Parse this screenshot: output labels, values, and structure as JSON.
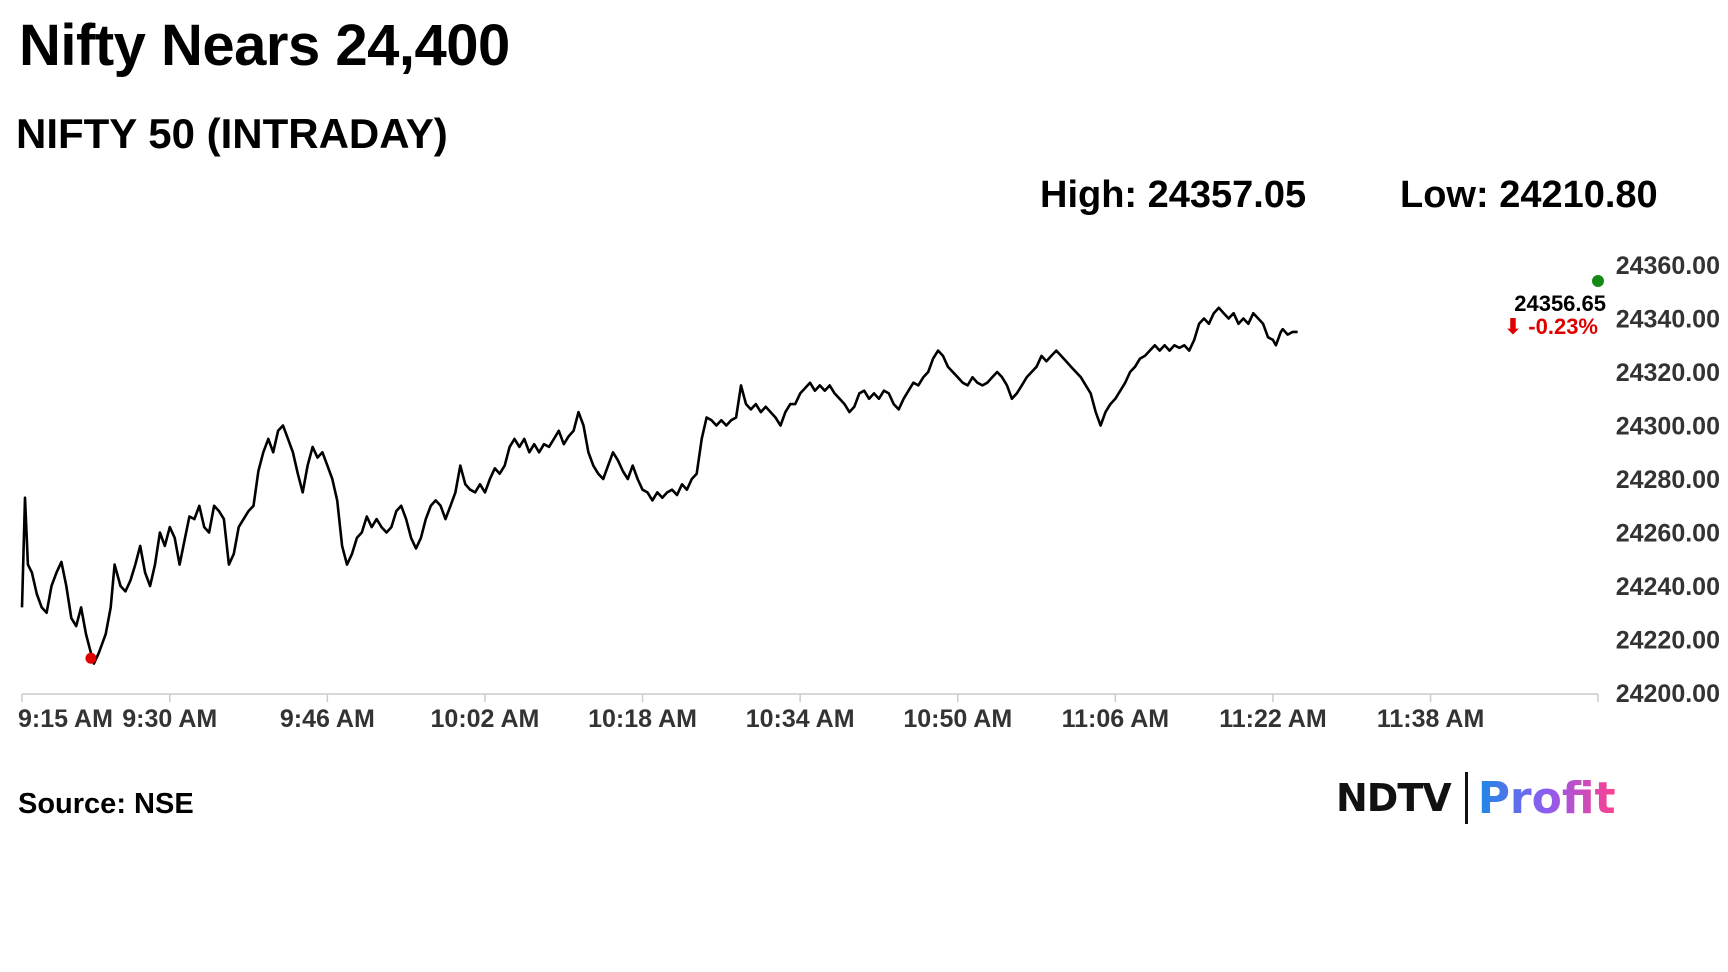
{
  "headline": "Nifty Nears 24,400",
  "chart_data": {
    "type": "line",
    "title": "NIFTY 50 (INTRADAY)",
    "stats": {
      "high": "High: 24357.05",
      "low": "Low: 24210.80"
    },
    "last_value_label": "24356.65",
    "change_label": "⬇ -0.23%",
    "ylim": [
      24200,
      24360
    ],
    "y_ticks": [
      "24360.00",
      "24340.00",
      "24320.00",
      "24300.00",
      "24280.00",
      "24260.00",
      "24240.00",
      "24220.00",
      "24200.00"
    ],
    "x_tick_labels": [
      "9:15 AM",
      "9:30 AM",
      "9:46 AM",
      "10:02 AM",
      "10:18 AM",
      "10:34 AM",
      "10:50 AM",
      "11:06 AM",
      "11:22 AM",
      "11:38 AM"
    ],
    "x_ticks_min": [
      0,
      15,
      31,
      47,
      63,
      79,
      95,
      111,
      127,
      143
    ],
    "x_max_min": 160,
    "series": [
      {
        "points": [
          [
            0,
            24232
          ],
          [
            0.3,
            24273
          ],
          [
            0.6,
            24248
          ],
          [
            1,
            24245
          ],
          [
            1.5,
            24237
          ],
          [
            2,
            24232
          ],
          [
            2.5,
            24230
          ],
          [
            3,
            24240
          ],
          [
            3.5,
            24245
          ],
          [
            4,
            24249
          ],
          [
            4.5,
            24240
          ],
          [
            5,
            24228
          ],
          [
            5.5,
            24225
          ],
          [
            6,
            24232
          ],
          [
            6.5,
            24222
          ],
          [
            7,
            24215
          ],
          [
            7.3,
            24211
          ],
          [
            7.8,
            24215
          ],
          [
            8.5,
            24222
          ],
          [
            9,
            24232
          ],
          [
            9.4,
            24248
          ],
          [
            10,
            24240
          ],
          [
            10.5,
            24238
          ],
          [
            11,
            24242
          ],
          [
            11.5,
            24248
          ],
          [
            12,
            24255
          ],
          [
            12.5,
            24245
          ],
          [
            13,
            24240
          ],
          [
            13.5,
            24248
          ],
          [
            14,
            24260
          ],
          [
            14.5,
            24255
          ],
          [
            15,
            24262
          ],
          [
            15.5,
            24258
          ],
          [
            16,
            24248
          ],
          [
            16.5,
            24257
          ],
          [
            17,
            24266
          ],
          [
            17.5,
            24265
          ],
          [
            18,
            24270
          ],
          [
            18.5,
            24262
          ],
          [
            19,
            24260
          ],
          [
            19.5,
            24270
          ],
          [
            20,
            24268
          ],
          [
            20.5,
            24265
          ],
          [
            21,
            24248
          ],
          [
            21.5,
            24252
          ],
          [
            22,
            24262
          ],
          [
            22.5,
            24265
          ],
          [
            23,
            24268
          ],
          [
            23.5,
            24270
          ],
          [
            24,
            24283
          ],
          [
            24.5,
            24290
          ],
          [
            25,
            24295
          ],
          [
            25.5,
            24290
          ],
          [
            26,
            24298
          ],
          [
            26.5,
            24300
          ],
          [
            27,
            24295
          ],
          [
            27.5,
            24290
          ],
          [
            28,
            24282
          ],
          [
            28.5,
            24275
          ],
          [
            29,
            24285
          ],
          [
            29.5,
            24292
          ],
          [
            30,
            24288
          ],
          [
            30.5,
            24290
          ],
          [
            31,
            24285
          ],
          [
            31.5,
            24280
          ],
          [
            32,
            24272
          ],
          [
            32.5,
            24255
          ],
          [
            33,
            24248
          ],
          [
            33.5,
            24252
          ],
          [
            34,
            24258
          ],
          [
            34.5,
            24260
          ],
          [
            35,
            24266
          ],
          [
            35.5,
            24262
          ],
          [
            36,
            24265
          ],
          [
            36.5,
            24262
          ],
          [
            37,
            24260
          ],
          [
            37.5,
            24262
          ],
          [
            38,
            24268
          ],
          [
            38.5,
            24270
          ],
          [
            39,
            24265
          ],
          [
            39.5,
            24258
          ],
          [
            40,
            24254
          ],
          [
            40.5,
            24258
          ],
          [
            41,
            24265
          ],
          [
            41.5,
            24270
          ],
          [
            42,
            24272
          ],
          [
            42.5,
            24270
          ],
          [
            43,
            24265
          ],
          [
            43.5,
            24270
          ],
          [
            44,
            24275
          ],
          [
            44.5,
            24285
          ],
          [
            45,
            24278
          ],
          [
            45.5,
            24276
          ],
          [
            46,
            24275
          ],
          [
            46.5,
            24278
          ],
          [
            47,
            24275
          ],
          [
            47.5,
            24280
          ],
          [
            48,
            24284
          ],
          [
            48.5,
            24282
          ],
          [
            49,
            24285
          ],
          [
            49.5,
            24292
          ],
          [
            50,
            24295
          ],
          [
            50.5,
            24292
          ],
          [
            51,
            24295
          ],
          [
            51.5,
            24290
          ],
          [
            52,
            24293
          ],
          [
            52.5,
            24290
          ],
          [
            53,
            24293
          ],
          [
            53.5,
            24292
          ],
          [
            54,
            24295
          ],
          [
            54.5,
            24298
          ],
          [
            55,
            24293
          ],
          [
            55.5,
            24296
          ],
          [
            56,
            24298
          ],
          [
            56.5,
            24305
          ],
          [
            57,
            24300
          ],
          [
            57.5,
            24290
          ],
          [
            58,
            24285
          ],
          [
            58.5,
            24282
          ],
          [
            59,
            24280
          ],
          [
            59.5,
            24285
          ],
          [
            60,
            24290
          ],
          [
            60.5,
            24287
          ],
          [
            61,
            24283
          ],
          [
            61.5,
            24280
          ],
          [
            62,
            24285
          ],
          [
            62.5,
            24280
          ],
          [
            63,
            24276
          ],
          [
            63.5,
            24275
          ],
          [
            64,
            24272
          ],
          [
            64.5,
            24275
          ],
          [
            65,
            24273
          ],
          [
            65.5,
            24275
          ],
          [
            66,
            24276
          ],
          [
            66.5,
            24274
          ],
          [
            67,
            24278
          ],
          [
            67.5,
            24276
          ],
          [
            68,
            24280
          ],
          [
            68.5,
            24282
          ],
          [
            69,
            24295
          ],
          [
            69.5,
            24303
          ],
          [
            70,
            24302
          ],
          [
            70.5,
            24300
          ],
          [
            71,
            24302
          ],
          [
            71.5,
            24300
          ],
          [
            72,
            24302
          ],
          [
            72.5,
            24303
          ],
          [
            73,
            24315
          ],
          [
            73.5,
            24308
          ],
          [
            74,
            24306
          ],
          [
            74.5,
            24308
          ],
          [
            75,
            24305
          ],
          [
            75.5,
            24307
          ],
          [
            76,
            24305
          ],
          [
            76.5,
            24303
          ],
          [
            77,
            24300
          ],
          [
            77.5,
            24305
          ],
          [
            78,
            24308
          ],
          [
            78.5,
            24308
          ],
          [
            79,
            24312
          ],
          [
            79.5,
            24314
          ],
          [
            80,
            24316
          ],
          [
            80.5,
            24313
          ],
          [
            81,
            24315
          ],
          [
            81.5,
            24313
          ],
          [
            82,
            24315
          ],
          [
            82.5,
            24312
          ],
          [
            83,
            24310
          ],
          [
            83.5,
            24308
          ],
          [
            84,
            24305
          ],
          [
            84.5,
            24307
          ],
          [
            85,
            24312
          ],
          [
            85.5,
            24313
          ],
          [
            86,
            24310
          ],
          [
            86.5,
            24312
          ],
          [
            87,
            24310
          ],
          [
            87.5,
            24313
          ],
          [
            88,
            24312
          ],
          [
            88.5,
            24308
          ],
          [
            89,
            24306
          ],
          [
            89.5,
            24310
          ],
          [
            90,
            24313
          ],
          [
            90.5,
            24316
          ],
          [
            91,
            24315
          ],
          [
            91.5,
            24318
          ],
          [
            92,
            24320
          ],
          [
            92.5,
            24325
          ],
          [
            93,
            24328
          ],
          [
            93.5,
            24326
          ],
          [
            94,
            24322
          ],
          [
            94.5,
            24320
          ],
          [
            95,
            24318
          ],
          [
            95.5,
            24316
          ],
          [
            96,
            24315
          ],
          [
            96.5,
            24318
          ],
          [
            97,
            24316
          ],
          [
            97.5,
            24315
          ],
          [
            98,
            24316
          ],
          [
            98.5,
            24318
          ],
          [
            99,
            24320
          ],
          [
            99.5,
            24318
          ],
          [
            100,
            24315
          ],
          [
            100.5,
            24310
          ],
          [
            101,
            24312
          ],
          [
            101.5,
            24315
          ],
          [
            102,
            24318
          ],
          [
            102.5,
            24320
          ],
          [
            103,
            24322
          ],
          [
            103.5,
            24326
          ],
          [
            104,
            24324
          ],
          [
            104.5,
            24326
          ],
          [
            105,
            24328
          ],
          [
            105.5,
            24326
          ],
          [
            106,
            24324
          ],
          [
            106.5,
            24322
          ],
          [
            107,
            24320
          ],
          [
            107.5,
            24318
          ],
          [
            108,
            24315
          ],
          [
            108.5,
            24312
          ],
          [
            109,
            24305
          ],
          [
            109.5,
            24300
          ],
          [
            110,
            24305
          ],
          [
            110.5,
            24308
          ],
          [
            111,
            24310
          ],
          [
            111.5,
            24313
          ],
          [
            112,
            24316
          ],
          [
            112.5,
            24320
          ],
          [
            113,
            24322
          ],
          [
            113.5,
            24325
          ],
          [
            114,
            24326
          ],
          [
            114.5,
            24328
          ],
          [
            115,
            24330
          ],
          [
            115.5,
            24328
          ],
          [
            116,
            24330
          ],
          [
            116.5,
            24328
          ],
          [
            117,
            24330
          ],
          [
            117.5,
            24329
          ],
          [
            118,
            24330
          ],
          [
            118.5,
            24328
          ],
          [
            119,
            24332
          ],
          [
            119.5,
            24338
          ],
          [
            120,
            24340
          ],
          [
            120.5,
            24338
          ],
          [
            121,
            24342
          ],
          [
            121.5,
            24344
          ],
          [
            122,
            24342
          ],
          [
            122.5,
            24340
          ],
          [
            123,
            24342
          ],
          [
            123.5,
            24338
          ],
          [
            124,
            24340
          ],
          [
            124.5,
            24338
          ],
          [
            125,
            24342
          ],
          [
            125.5,
            24340
          ],
          [
            126,
            24338
          ],
          [
            126.5,
            24333
          ],
          [
            127,
            24332
          ],
          [
            127.3,
            24330
          ],
          [
            127.8,
            24335
          ],
          [
            128,
            24336
          ],
          [
            128.5,
            24334
          ],
          [
            129,
            24335
          ],
          [
            129.5,
            24335
          ]
        ]
      }
    ],
    "high_marker": [
      160,
      24356.65
    ],
    "low_marker": [
      7,
      24213
    ],
    "colors": {
      "line": "#000000",
      "low_dot": "#e00000",
      "high_dot": "#148a14",
      "change": "#e00000",
      "axis": "#cccccc"
    }
  },
  "source": "Source: NSE",
  "brand": {
    "left": "NDTV",
    "right": "Profit"
  }
}
